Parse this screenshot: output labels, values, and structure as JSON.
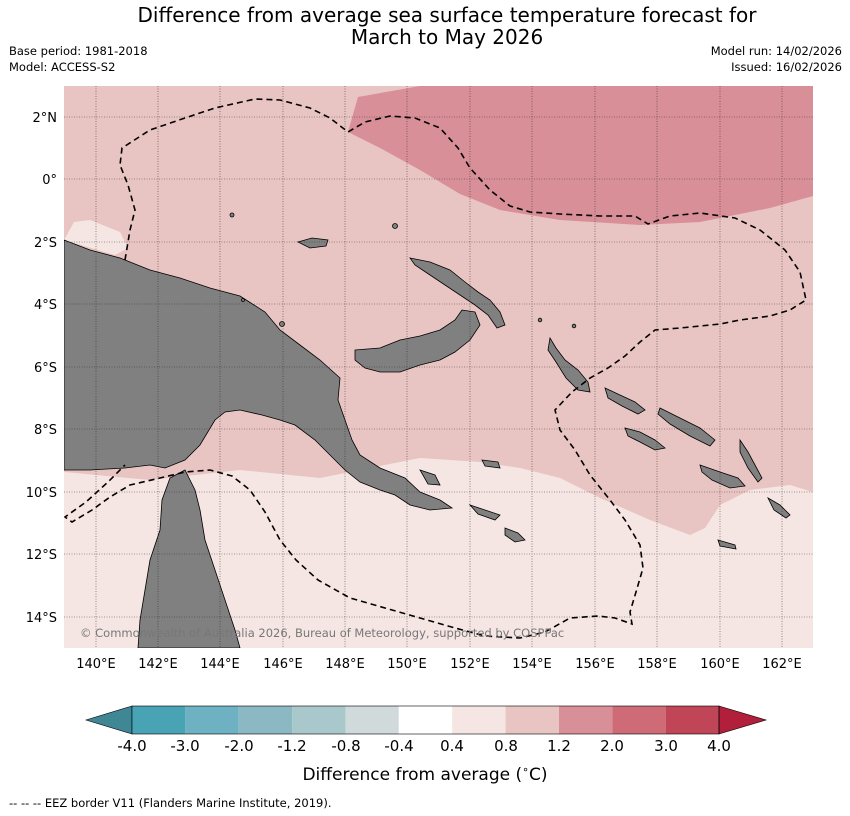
{
  "title_line1": "Difference from average sea surface temperature forecast for",
  "title_line2": "March to May 2026",
  "meta": {
    "base_period": "Base period: 1981-2018",
    "model": "Model: ACCESS-S2",
    "model_run": "Model run: 14/02/2026",
    "issued": "Issued: 16/02/2026"
  },
  "lat_labels": [
    "2°N",
    "0°",
    "2°S",
    "4°S",
    "6°S",
    "8°S",
    "10°S",
    "12°S",
    "14°S"
  ],
  "lon_labels": [
    "140°E",
    "142°E",
    "144°E",
    "146°E",
    "148°E",
    "150°E",
    "152°E",
    "154°E",
    "156°E",
    "158°E",
    "160°E",
    "162°E"
  ],
  "map_extent": {
    "lon": [
      139,
      163
    ],
    "lat": [
      -15,
      3
    ]
  },
  "copyright": "© Commonwealth of Australia 2026, Bureau of Meteorology, supported by COSPPac",
  "colorbar": {
    "ticks": [
      "-4.0",
      "-3.0",
      "-2.0",
      "-1.2",
      "-0.8",
      "-0.4",
      "0.4",
      "0.8",
      "1.2",
      "2.0",
      "3.0",
      "4.0"
    ],
    "colors": [
      "#3f8794",
      "#48a3b5",
      "#6eb1c2",
      "#8cb8c4",
      "#a8c8cb",
      "#d1dadb",
      "#ffffff",
      "#f5e6e4",
      "#e8c5c2",
      "#d88f97",
      "#cf6b76",
      "#c04556",
      "#b21f3a"
    ],
    "label": "Difference from average ($^\\circ$C)"
  },
  "colorbar_label_text": "Difference from average (",
  "colorbar_label_unit": "C)",
  "colorbar_label_degree": "∘",
  "legend_note": "--  --  -- EEZ border V11 (Flanders Marine Institute, 2019).",
  "colors": {
    "land": "#808080",
    "anomaly_0_4_0_8": "#f5e6e4",
    "anomaly_0_8_1_2": "#e8c5c2",
    "anomaly_1_2_2_0": "#d88f97"
  }
}
